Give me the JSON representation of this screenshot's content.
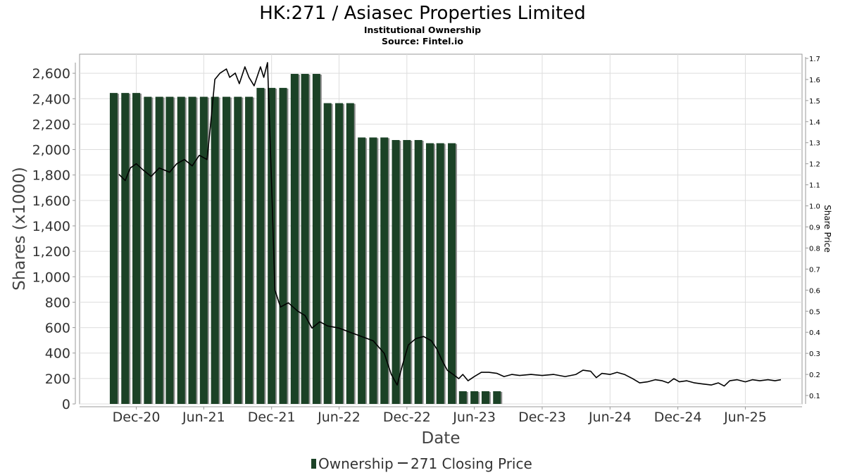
{
  "chart_data": {
    "type": "bar",
    "title": "HK:271 / Asiasec Properties Limited",
    "subtitle": "Institutional Ownership",
    "source": "Source: Fintel.io",
    "xlabel": "Date",
    "ylabel": "Shares (x1000)",
    "y2label": "Share Price",
    "ylim": [
      0,
      2750
    ],
    "y2lim": [
      0.06,
      1.72
    ],
    "yticks": [
      0,
      200,
      400,
      600,
      800,
      1000,
      1200,
      1400,
      1600,
      1800,
      2000,
      2200,
      2400,
      2600
    ],
    "yticklabels": [
      "0",
      "200",
      "400",
      "600",
      "800",
      "1,000",
      "1,200",
      "1,400",
      "1,600",
      "1,800",
      "2,000",
      "2,200",
      "2,400",
      "2,600"
    ],
    "y2ticks": [
      0.1,
      0.2,
      0.3,
      0.4,
      0.5,
      0.6,
      0.7,
      0.8,
      0.9,
      1.0,
      1.1,
      1.2,
      1.3,
      1.4,
      1.5,
      1.6,
      1.7
    ],
    "xlim": [
      "2020-07-01",
      "2025-11-01"
    ],
    "xticks": [
      {
        "date": "2020-12-01",
        "label": "Dec-20"
      },
      {
        "date": "2021-06-01",
        "label": "Jun-21"
      },
      {
        "date": "2021-12-01",
        "label": "Dec-21"
      },
      {
        "date": "2022-06-01",
        "label": "Jun-22"
      },
      {
        "date": "2022-12-01",
        "label": "Dec-22"
      },
      {
        "date": "2023-06-01",
        "label": "Jun-23"
      },
      {
        "date": "2023-12-01",
        "label": "Dec-23"
      },
      {
        "date": "2024-06-01",
        "label": "Jun-24"
      },
      {
        "date": "2024-12-01",
        "label": "Dec-24"
      },
      {
        "date": "2025-06-01",
        "label": "Jun-25"
      }
    ],
    "grid": true,
    "legend_position": "bottom-center",
    "legend": [
      {
        "label": "Ownership",
        "marker": "bar"
      },
      {
        "label": "271 Closing Price",
        "marker": "line"
      }
    ],
    "colors": {
      "bar": "#1b4226",
      "bar_shadow": "#8f8f8f",
      "line": "#000000",
      "grid": "#dddddd",
      "axis": "#999999"
    },
    "ownership": [
      {
        "date": "2020-10-01",
        "value": 2445
      },
      {
        "date": "2020-11-01",
        "value": 2445
      },
      {
        "date": "2020-12-01",
        "value": 2445
      },
      {
        "date": "2021-01-01",
        "value": 2415
      },
      {
        "date": "2021-02-01",
        "value": 2415
      },
      {
        "date": "2021-03-01",
        "value": 2415
      },
      {
        "date": "2021-04-01",
        "value": 2415
      },
      {
        "date": "2021-05-01",
        "value": 2415
      },
      {
        "date": "2021-06-01",
        "value": 2415
      },
      {
        "date": "2021-07-01",
        "value": 2415
      },
      {
        "date": "2021-08-01",
        "value": 2415
      },
      {
        "date": "2021-09-01",
        "value": 2415
      },
      {
        "date": "2021-10-01",
        "value": 2415
      },
      {
        "date": "2021-11-01",
        "value": 2485
      },
      {
        "date": "2021-12-01",
        "value": 2485
      },
      {
        "date": "2022-01-01",
        "value": 2485
      },
      {
        "date": "2022-02-01",
        "value": 2595
      },
      {
        "date": "2022-03-01",
        "value": 2595
      },
      {
        "date": "2022-04-01",
        "value": 2595
      },
      {
        "date": "2022-05-01",
        "value": 2365
      },
      {
        "date": "2022-06-01",
        "value": 2365
      },
      {
        "date": "2022-07-01",
        "value": 2365
      },
      {
        "date": "2022-08-01",
        "value": 2095
      },
      {
        "date": "2022-09-01",
        "value": 2095
      },
      {
        "date": "2022-10-01",
        "value": 2095
      },
      {
        "date": "2022-11-01",
        "value": 2075
      },
      {
        "date": "2022-12-01",
        "value": 2075
      },
      {
        "date": "2023-01-01",
        "value": 2075
      },
      {
        "date": "2023-02-01",
        "value": 2050
      },
      {
        "date": "2023-03-01",
        "value": 2050
      },
      {
        "date": "2023-04-01",
        "value": 2050
      },
      {
        "date": "2023-05-01",
        "value": 100
      },
      {
        "date": "2023-06-01",
        "value": 100
      },
      {
        "date": "2023-07-01",
        "value": 100
      },
      {
        "date": "2023-08-01",
        "value": 100
      }
    ],
    "price": [
      {
        "date": "2020-10-15",
        "value": 1.15
      },
      {
        "date": "2020-11-01",
        "value": 1.12
      },
      {
        "date": "2020-11-15",
        "value": 1.18
      },
      {
        "date": "2020-12-01",
        "value": 1.2
      },
      {
        "date": "2020-12-20",
        "value": 1.17
      },
      {
        "date": "2021-01-10",
        "value": 1.14
      },
      {
        "date": "2021-02-01",
        "value": 1.18
      },
      {
        "date": "2021-03-01",
        "value": 1.16
      },
      {
        "date": "2021-03-20",
        "value": 1.2
      },
      {
        "date": "2021-04-10",
        "value": 1.22
      },
      {
        "date": "2021-05-01",
        "value": 1.19
      },
      {
        "date": "2021-05-20",
        "value": 1.24
      },
      {
        "date": "2021-06-10",
        "value": 1.22
      },
      {
        "date": "2021-06-20",
        "value": 1.4
      },
      {
        "date": "2021-07-01",
        "value": 1.6
      },
      {
        "date": "2021-07-15",
        "value": 1.63
      },
      {
        "date": "2021-08-01",
        "value": 1.65
      },
      {
        "date": "2021-08-10",
        "value": 1.61
      },
      {
        "date": "2021-08-25",
        "value": 1.63
      },
      {
        "date": "2021-09-05",
        "value": 1.58
      },
      {
        "date": "2021-09-20",
        "value": 1.66
      },
      {
        "date": "2021-10-01",
        "value": 1.61
      },
      {
        "date": "2021-10-15",
        "value": 1.57
      },
      {
        "date": "2021-11-01",
        "value": 1.66
      },
      {
        "date": "2021-11-10",
        "value": 1.61
      },
      {
        "date": "2021-11-20",
        "value": 1.68
      },
      {
        "date": "2021-12-01",
        "value": 1.1
      },
      {
        "date": "2021-12-10",
        "value": 0.6
      },
      {
        "date": "2021-12-25",
        "value": 0.52
      },
      {
        "date": "2022-01-15",
        "value": 0.54
      },
      {
        "date": "2022-02-10",
        "value": 0.5
      },
      {
        "date": "2022-03-01",
        "value": 0.48
      },
      {
        "date": "2022-03-20",
        "value": 0.42
      },
      {
        "date": "2022-04-10",
        "value": 0.45
      },
      {
        "date": "2022-05-01",
        "value": 0.43
      },
      {
        "date": "2022-06-01",
        "value": 0.42
      },
      {
        "date": "2022-07-01",
        "value": 0.4
      },
      {
        "date": "2022-08-01",
        "value": 0.38
      },
      {
        "date": "2022-09-01",
        "value": 0.36
      },
      {
        "date": "2022-10-01",
        "value": 0.3
      },
      {
        "date": "2022-10-20",
        "value": 0.2
      },
      {
        "date": "2022-11-05",
        "value": 0.15
      },
      {
        "date": "2022-11-20",
        "value": 0.25
      },
      {
        "date": "2022-12-05",
        "value": 0.34
      },
      {
        "date": "2022-12-25",
        "value": 0.37
      },
      {
        "date": "2023-01-15",
        "value": 0.38
      },
      {
        "date": "2023-02-05",
        "value": 0.36
      },
      {
        "date": "2023-02-20",
        "value": 0.32
      },
      {
        "date": "2023-03-05",
        "value": 0.27
      },
      {
        "date": "2023-03-20",
        "value": 0.22
      },
      {
        "date": "2023-04-05",
        "value": 0.2
      },
      {
        "date": "2023-04-20",
        "value": 0.18
      },
      {
        "date": "2023-05-01",
        "value": 0.2
      },
      {
        "date": "2023-05-15",
        "value": 0.17
      },
      {
        "date": "2023-06-01",
        "value": 0.19
      },
      {
        "date": "2023-06-20",
        "value": 0.21
      },
      {
        "date": "2023-07-10",
        "value": 0.21
      },
      {
        "date": "2023-08-01",
        "value": 0.205
      },
      {
        "date": "2023-08-20",
        "value": 0.19
      },
      {
        "date": "2023-09-10",
        "value": 0.2
      },
      {
        "date": "2023-10-01",
        "value": 0.195
      },
      {
        "date": "2023-11-01",
        "value": 0.2
      },
      {
        "date": "2023-12-01",
        "value": 0.195
      },
      {
        "date": "2024-01-01",
        "value": 0.2
      },
      {
        "date": "2024-02-01",
        "value": 0.19
      },
      {
        "date": "2024-03-01",
        "value": 0.2
      },
      {
        "date": "2024-03-20",
        "value": 0.22
      },
      {
        "date": "2024-04-10",
        "value": 0.215
      },
      {
        "date": "2024-04-25",
        "value": 0.185
      },
      {
        "date": "2024-05-10",
        "value": 0.205
      },
      {
        "date": "2024-06-01",
        "value": 0.2
      },
      {
        "date": "2024-06-20",
        "value": 0.21
      },
      {
        "date": "2024-07-10",
        "value": 0.2
      },
      {
        "date": "2024-08-01",
        "value": 0.18
      },
      {
        "date": "2024-08-20",
        "value": 0.16
      },
      {
        "date": "2024-09-10",
        "value": 0.165
      },
      {
        "date": "2024-10-01",
        "value": 0.175
      },
      {
        "date": "2024-10-20",
        "value": 0.17
      },
      {
        "date": "2024-11-05",
        "value": 0.16
      },
      {
        "date": "2024-11-20",
        "value": 0.18
      },
      {
        "date": "2024-12-05",
        "value": 0.165
      },
      {
        "date": "2024-12-25",
        "value": 0.17
      },
      {
        "date": "2025-01-15",
        "value": 0.16
      },
      {
        "date": "2025-02-05",
        "value": 0.155
      },
      {
        "date": "2025-03-01",
        "value": 0.15
      },
      {
        "date": "2025-03-20",
        "value": 0.16
      },
      {
        "date": "2025-04-05",
        "value": 0.145
      },
      {
        "date": "2025-04-20",
        "value": 0.17
      },
      {
        "date": "2025-05-10",
        "value": 0.175
      },
      {
        "date": "2025-06-01",
        "value": 0.165
      },
      {
        "date": "2025-06-20",
        "value": 0.175
      },
      {
        "date": "2025-07-10",
        "value": 0.17
      },
      {
        "date": "2025-08-01",
        "value": 0.175
      },
      {
        "date": "2025-08-20",
        "value": 0.17
      },
      {
        "date": "2025-09-05",
        "value": 0.175
      }
    ]
  }
}
